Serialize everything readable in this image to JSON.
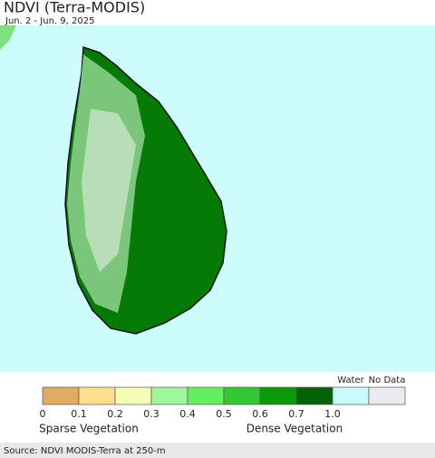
{
  "header": {
    "title": "NDVI (Terra-MODIS)",
    "subtitle": "Jun. 2 - Jun. 9, 2025"
  },
  "legend": {
    "colors": [
      "#e2ab63",
      "#fde08f",
      "#f5fcb3",
      "#9ef79b",
      "#62f062",
      "#33c833",
      "#0a9a0a",
      "#046404",
      "#c8fcfc",
      "#ebeaf0"
    ],
    "extra_labels": [
      "Water",
      "No Data"
    ],
    "ticks": [
      "0",
      "0.1",
      "0.2",
      "0.3",
      "0.4",
      "0.5",
      "0.6",
      "0.7",
      "1.0"
    ],
    "low_label": "Sparse Vegetation",
    "high_label": "Dense Vegetation"
  },
  "footer": {
    "source": "Source: NDVI MODIS-Terra at 250-m"
  }
}
